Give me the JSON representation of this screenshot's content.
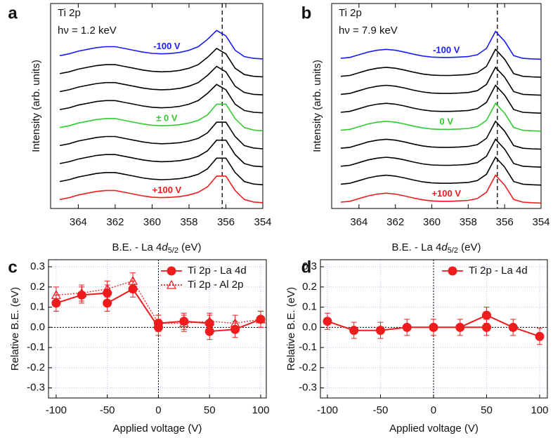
{
  "chart_data": [
    {
      "type": "spectra",
      "panel": "a",
      "title": [
        "Ti 2p",
        "hν = 1.2 keV"
      ],
      "xlabel": [
        "B.E. - La 4",
        "d",
        "5/2",
        " (eV)"
      ],
      "ylabel": "Intensity (arb. units)",
      "xlim": [
        365.5,
        354
      ],
      "ylim": [
        -0.3,
        11.1
      ],
      "xticks": [
        364,
        362,
        360,
        358,
        356,
        354
      ],
      "reference_line": 356.2,
      "x": [
        365,
        364.5,
        364,
        363.5,
        363,
        362.5,
        362,
        361.5,
        361,
        360.5,
        360,
        359.5,
        359,
        358.5,
        358,
        357.5,
        357,
        356.5,
        356,
        355.5,
        355,
        354.5,
        354
      ],
      "series": [
        {
          "label": "-100 V",
          "color": "#1a1aff",
          "values": [
            8.2,
            8.3,
            8.45,
            8.55,
            8.65,
            8.7,
            8.7,
            8.6,
            8.5,
            8.4,
            8.33,
            8.3,
            8.32,
            8.38,
            8.5,
            8.7,
            9.1,
            9.6,
            9.3,
            8.5,
            8.15,
            8.05,
            8.02
          ]
        },
        {
          "color": "#000000",
          "values": [
            7.2,
            7.3,
            7.45,
            7.55,
            7.65,
            7.7,
            7.7,
            7.6,
            7.5,
            7.4,
            7.33,
            7.3,
            7.32,
            7.38,
            7.5,
            7.7,
            8.1,
            8.6,
            8.3,
            7.5,
            7.15,
            7.05,
            7.02
          ]
        },
        {
          "color": "#000000",
          "values": [
            6.2,
            6.3,
            6.45,
            6.55,
            6.65,
            6.7,
            6.7,
            6.6,
            6.5,
            6.4,
            6.33,
            6.3,
            6.32,
            6.38,
            6.5,
            6.7,
            7.1,
            7.6,
            7.3,
            6.5,
            6.15,
            6.05,
            6.02
          ]
        },
        {
          "color": "#000000",
          "values": [
            5.2,
            5.3,
            5.45,
            5.55,
            5.65,
            5.7,
            5.7,
            5.6,
            5.5,
            5.4,
            5.33,
            5.3,
            5.32,
            5.38,
            5.5,
            5.7,
            6.1,
            6.6,
            6.3,
            5.5,
            5.15,
            5.05,
            5.02
          ]
        },
        {
          "label": "± 0 V",
          "color": "#2ecc2e",
          "values": [
            4.2,
            4.3,
            4.45,
            4.55,
            4.65,
            4.7,
            4.7,
            4.6,
            4.5,
            4.4,
            4.33,
            4.3,
            4.32,
            4.36,
            4.45,
            4.6,
            4.9,
            5.5,
            5.5,
            4.7,
            4.2,
            4.06,
            4.02
          ]
        },
        {
          "color": "#000000",
          "values": [
            3.2,
            3.3,
            3.45,
            3.55,
            3.65,
            3.7,
            3.7,
            3.6,
            3.5,
            3.4,
            3.33,
            3.3,
            3.32,
            3.36,
            3.45,
            3.6,
            3.9,
            4.5,
            4.5,
            3.7,
            3.2,
            3.06,
            3.02
          ]
        },
        {
          "color": "#000000",
          "values": [
            2.2,
            2.3,
            2.45,
            2.55,
            2.65,
            2.7,
            2.7,
            2.6,
            2.5,
            2.4,
            2.33,
            2.3,
            2.32,
            2.36,
            2.45,
            2.6,
            2.9,
            3.5,
            3.5,
            2.7,
            2.2,
            2.06,
            2.02
          ]
        },
        {
          "color": "#000000",
          "values": [
            1.2,
            1.3,
            1.45,
            1.55,
            1.65,
            1.7,
            1.7,
            1.6,
            1.5,
            1.4,
            1.33,
            1.3,
            1.32,
            1.36,
            1.45,
            1.6,
            1.9,
            2.5,
            2.5,
            1.7,
            1.2,
            1.06,
            1.02
          ]
        },
        {
          "label": "+100 V",
          "color": "#ee1c1c",
          "values": [
            0.2,
            0.3,
            0.45,
            0.55,
            0.65,
            0.7,
            0.7,
            0.6,
            0.5,
            0.4,
            0.33,
            0.3,
            0.32,
            0.36,
            0.45,
            0.6,
            0.9,
            1.5,
            1.5,
            0.7,
            0.2,
            0.06,
            0.02
          ]
        }
      ]
    },
    {
      "type": "spectra",
      "panel": "b",
      "title": [
        "Ti 2p",
        "hν = 7.9 keV"
      ],
      "xlabel": [
        "B.E. - La 4",
        "d",
        "5/2",
        " (eV)"
      ],
      "ylabel": "Intensity (arb. units)",
      "xlim": [
        365.5,
        354
      ],
      "ylim": [
        -0.3,
        11.1
      ],
      "xticks": [
        364,
        362,
        360,
        358,
        356,
        354
      ],
      "reference_line": 356.4,
      "x": [
        365,
        364.5,
        364,
        363.5,
        363,
        362.5,
        362,
        361.5,
        361,
        360.5,
        360,
        359.5,
        359,
        358.5,
        358,
        357.5,
        357,
        356.5,
        356,
        355.5,
        355,
        354.5,
        354
      ],
      "series": [
        {
          "label": "-100 V",
          "color": "#1a1aff",
          "values": [
            8.05,
            8.1,
            8.25,
            8.4,
            8.5,
            8.55,
            8.5,
            8.4,
            8.28,
            8.18,
            8.12,
            8.1,
            8.1,
            8.12,
            8.15,
            8.25,
            8.6,
            9.55,
            9.0,
            8.2,
            8.05,
            8.02,
            8.0
          ]
        },
        {
          "color": "#000000",
          "values": [
            7.05,
            7.1,
            7.25,
            7.4,
            7.5,
            7.55,
            7.5,
            7.4,
            7.28,
            7.18,
            7.12,
            7.1,
            7.1,
            7.12,
            7.15,
            7.25,
            7.6,
            8.55,
            8.0,
            7.2,
            7.05,
            7.02,
            7.0
          ]
        },
        {
          "color": "#000000",
          "values": [
            6.05,
            6.1,
            6.25,
            6.4,
            6.5,
            6.55,
            6.5,
            6.4,
            6.28,
            6.18,
            6.12,
            6.1,
            6.1,
            6.12,
            6.15,
            6.25,
            6.6,
            7.55,
            7.0,
            6.2,
            6.05,
            6.02,
            6.0
          ]
        },
        {
          "color": "#000000",
          "values": [
            5.05,
            5.1,
            5.25,
            5.4,
            5.5,
            5.55,
            5.5,
            5.4,
            5.28,
            5.18,
            5.12,
            5.1,
            5.1,
            5.12,
            5.15,
            5.25,
            5.6,
            6.55,
            6.0,
            5.2,
            5.05,
            5.02,
            5.0
          ]
        },
        {
          "label": "0 V",
          "color": "#2ecc2e",
          "values": [
            4.05,
            4.1,
            4.25,
            4.4,
            4.5,
            4.55,
            4.5,
            4.4,
            4.28,
            4.18,
            4.12,
            4.1,
            4.1,
            4.12,
            4.15,
            4.25,
            4.6,
            5.55,
            5.0,
            4.2,
            4.05,
            4.02,
            4.0
          ]
        },
        {
          "color": "#000000",
          "values": [
            3.05,
            3.1,
            3.25,
            3.4,
            3.5,
            3.55,
            3.5,
            3.4,
            3.28,
            3.18,
            3.12,
            3.1,
            3.1,
            3.12,
            3.15,
            3.25,
            3.6,
            4.55,
            4.0,
            3.2,
            3.05,
            3.02,
            3.0
          ]
        },
        {
          "color": "#000000",
          "values": [
            2.05,
            2.1,
            2.25,
            2.4,
            2.5,
            2.55,
            2.5,
            2.4,
            2.28,
            2.18,
            2.12,
            2.1,
            2.1,
            2.12,
            2.15,
            2.25,
            2.6,
            3.55,
            3.0,
            2.2,
            2.05,
            2.02,
            2.0
          ]
        },
        {
          "color": "#000000",
          "values": [
            1.05,
            1.1,
            1.25,
            1.4,
            1.5,
            1.55,
            1.5,
            1.4,
            1.28,
            1.18,
            1.12,
            1.1,
            1.1,
            1.12,
            1.15,
            1.25,
            1.6,
            2.55,
            2.0,
            1.2,
            1.05,
            1.02,
            1.0
          ]
        },
        {
          "label": "+100 V",
          "color": "#ee1c1c",
          "values": [
            0.05,
            0.1,
            0.25,
            0.4,
            0.5,
            0.55,
            0.5,
            0.4,
            0.28,
            0.18,
            0.12,
            0.1,
            0.1,
            0.12,
            0.15,
            0.25,
            0.6,
            1.55,
            1.0,
            0.2,
            0.05,
            0.02,
            0.0
          ]
        }
      ]
    },
    {
      "type": "errorbar",
      "panel": "c",
      "xlabel": "Applied voltage (V)",
      "ylabel": "Relative B.E. (eV)",
      "xlim": [
        -107.5,
        105.5
      ],
      "ylim": [
        -0.35,
        0.335
      ],
      "xticks": [
        -100,
        -50,
        0,
        50,
        100
      ],
      "yticks": [
        0.3,
        0.2,
        0.1,
        {
          "value": 0,
          "label": "0.0"
        },
        -0.1,
        -0.2,
        -0.3
      ],
      "grid": true,
      "xref": 0,
      "yref": 0,
      "legend": "upper right",
      "series": [
        {
          "name": "Ti 2p - La 4d",
          "color": "#ee1c1c",
          "marker": "circle",
          "linestyle": "solid",
          "x": [
            -100,
            -75,
            -50,
            -50,
            -25,
            0,
            0,
            25,
            50,
            50,
            75,
            100
          ],
          "values": [
            0.12,
            0.16,
            0.17,
            0.12,
            0.19,
            0.0,
            0.02,
            0.03,
            0.02,
            -0.02,
            -0.01,
            0.04
          ],
          "errors": [
            0.04,
            0.04,
            0.04,
            0.04,
            0.04,
            0.04,
            0.04,
            0.04,
            0.04,
            0.04,
            0.04,
            0.04
          ]
        },
        {
          "name": "Ti 2p - Al 2p",
          "color": "#ee1c1c",
          "marker": "triangle",
          "linestyle": "dotted",
          "x": [
            -100,
            -75,
            -50,
            -25,
            0,
            25,
            50,
            75,
            100
          ],
          "values": [
            0.16,
            0.17,
            0.19,
            0.23,
            0.02,
            0.02,
            0.03,
            0.02,
            0.04
          ],
          "errors": [
            0.04,
            0.04,
            0.04,
            0.04,
            0.04,
            0.04,
            0.04,
            0.04,
            0.04
          ]
        }
      ]
    },
    {
      "type": "errorbar",
      "panel": "d",
      "xlabel": "Applied voltage (V)",
      "ylabel": "Relative B.E. (eV)",
      "xlim": [
        -106.6,
        107.3
      ],
      "ylim": [
        -0.35,
        0.335
      ],
      "xticks": [
        -100,
        -50,
        0,
        50,
        100
      ],
      "yticks": [
        0.3,
        0.2,
        0.1,
        {
          "value": 0,
          "label": "0.0"
        },
        -0.1,
        -0.2,
        -0.3
      ],
      "grid": true,
      "xref": 0,
      "yref": 0,
      "legend": "upper right",
      "series": [
        {
          "name": "Ti 2p - La 4d",
          "color": "#ee1c1c",
          "marker": "circle",
          "linestyle": "solid",
          "x": [
            -100,
            -75,
            -50,
            -25,
            0,
            50,
            25,
            50,
            75,
            100
          ],
          "values": [
            0.03,
            -0.015,
            -0.015,
            0.0,
            0.0,
            0.0,
            0.0,
            0.06,
            0.0,
            -0.045
          ],
          "errors": [
            0.04,
            0.04,
            0.04,
            0.04,
            0.04,
            0.04,
            0.04,
            0.04,
            0.04,
            0.04
          ]
        }
      ]
    }
  ]
}
